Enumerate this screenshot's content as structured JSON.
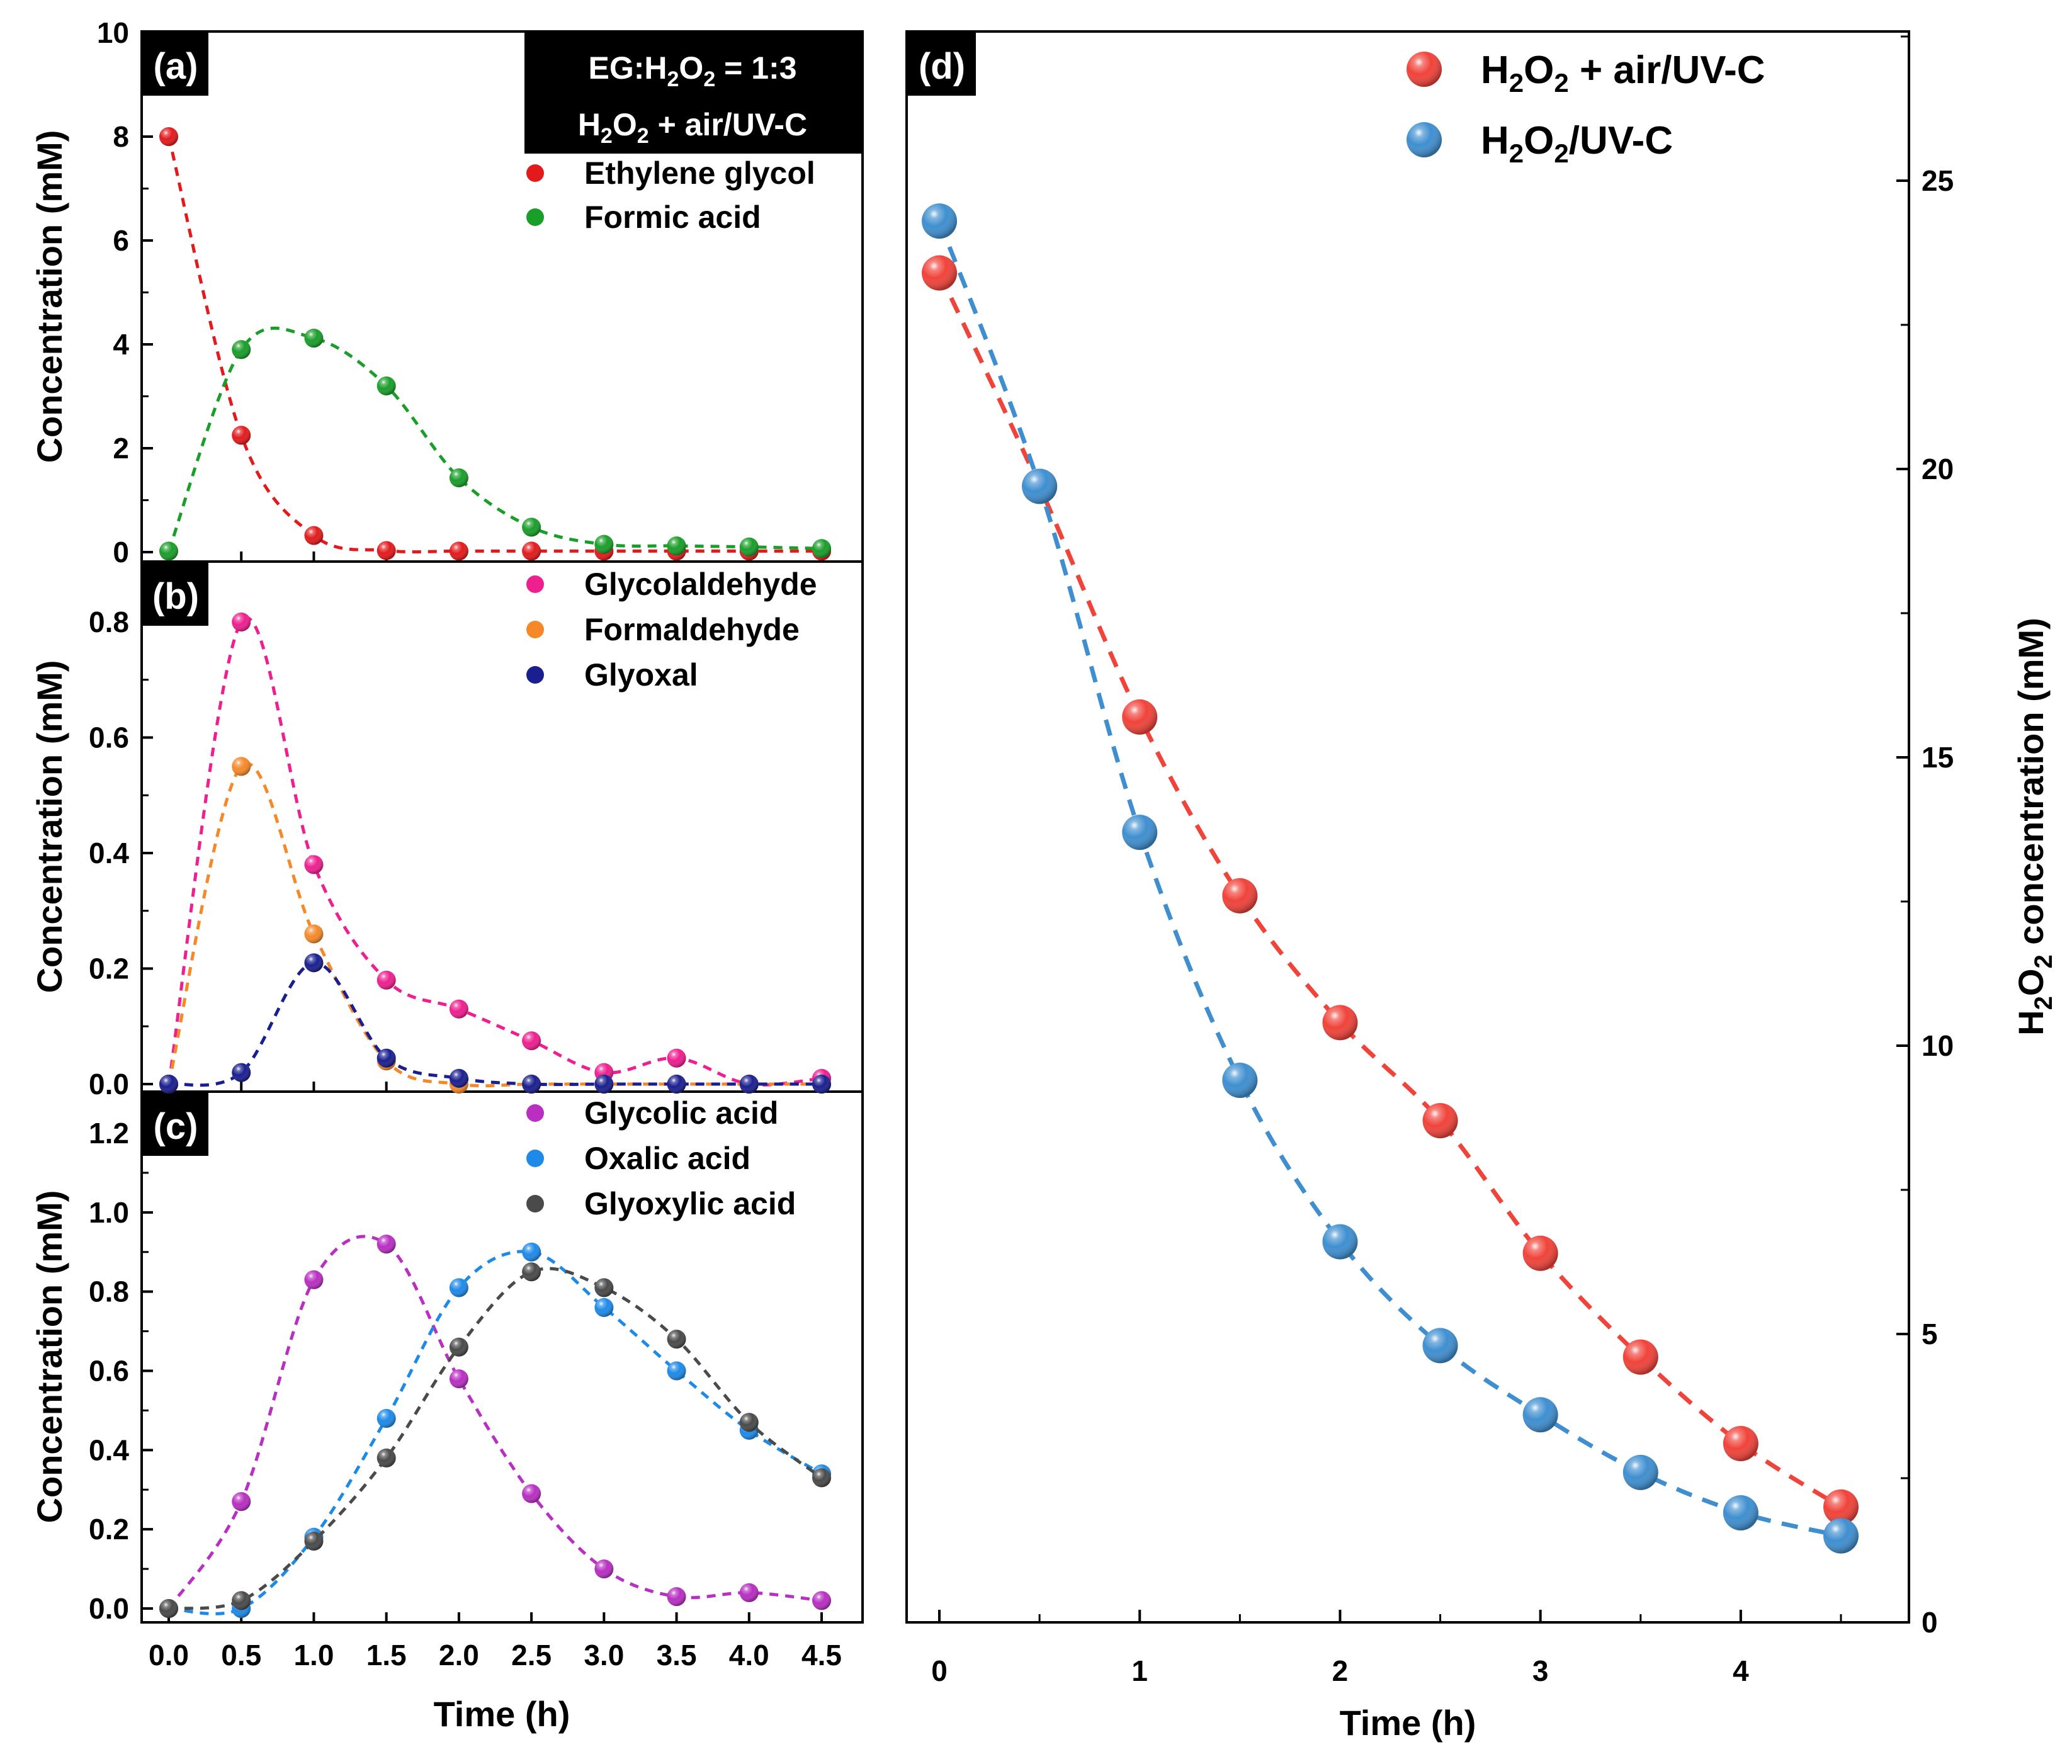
{
  "colors": {
    "ethylene_glycol": "#e31a1c",
    "formic_acid": "#1a9e2a",
    "glycolaldehyde": "#ee1f8f",
    "formaldehyde": "#f5892a",
    "glyoxal": "#1a1f8f",
    "glycolic_acid": "#b82fc2",
    "oxalic_acid": "#1e8ae8",
    "glyoxylic_acid": "#4a4a4a",
    "h2o2_air": "#f0433a",
    "h2o2_uv": "#3f8fd0"
  },
  "chart_data": [
    {
      "panel": "a",
      "type": "scatter",
      "badge": "(a)",
      "condition_line1": "EG:H2O2 = 1:3",
      "condition_line2": "H2O2 + air/UV-C",
      "ylabel": "Concentration (mM)",
      "ylim": [
        0,
        10
      ],
      "yticks": [
        "0",
        "2",
        "4",
        "6",
        "8",
        "10"
      ],
      "x": [
        0,
        0.5,
        1.0,
        1.5,
        2.0,
        2.5,
        3.0,
        3.5,
        4.0,
        4.5
      ],
      "series": [
        {
          "name": "Ethylene glycol",
          "values": [
            8.0,
            2.25,
            0.32,
            0.03,
            0.02,
            0.02,
            0.02,
            0.02,
            0.02,
            0.02
          ]
        },
        {
          "name": "Formic acid",
          "values": [
            0.02,
            3.9,
            4.12,
            3.2,
            1.43,
            0.48,
            0.15,
            0.12,
            0.1,
            0.07
          ]
        }
      ]
    },
    {
      "panel": "b",
      "type": "scatter",
      "badge": "(b)",
      "ylabel": "Concentration (mM)",
      "ylim": [
        -0.02,
        0.9
      ],
      "yticks": [
        "0.0",
        "0.2",
        "0.4",
        "0.6",
        "0.8"
      ],
      "x": [
        0,
        0.5,
        1.0,
        1.5,
        2.0,
        2.5,
        3.0,
        3.5,
        4.0,
        4.5
      ],
      "series": [
        {
          "name": "Glycolaldehyde",
          "values": [
            0.0,
            0.8,
            0.38,
            0.18,
            0.13,
            0.075,
            0.02,
            0.045,
            0.0,
            0.01
          ]
        },
        {
          "name": "Formaldehyde",
          "values": [
            0.0,
            0.55,
            0.26,
            0.04,
            0.0,
            0.0,
            0.0,
            0.0,
            0.0,
            0.0
          ]
        },
        {
          "name": "Glyoxal",
          "values": [
            0.0,
            0.02,
            0.21,
            0.045,
            0.01,
            0.0,
            0.0,
            0.0,
            0.0,
            0.0
          ]
        }
      ]
    },
    {
      "panel": "c",
      "type": "scatter",
      "badge": "(c)",
      "ylabel": "Concentration (mM)",
      "xlabel": "Time (h)",
      "ylim": [
        -0.05,
        1.3
      ],
      "yticks": [
        "0.0",
        "0.2",
        "0.4",
        "0.6",
        "0.8",
        "1.0",
        "1.2"
      ],
      "xticks": [
        "0.0",
        "0.5",
        "1.0",
        "1.5",
        "2.0",
        "2.5",
        "3.0",
        "3.5",
        "4.0",
        "4.5"
      ],
      "x": [
        0,
        0.5,
        1.0,
        1.5,
        2.0,
        2.5,
        3.0,
        3.5,
        4.0,
        4.5
      ],
      "series": [
        {
          "name": "Glycolic acid",
          "values": [
            0.0,
            0.27,
            0.83,
            0.92,
            0.58,
            0.29,
            0.1,
            0.03,
            0.04,
            0.02
          ]
        },
        {
          "name": "Oxalic acid",
          "values": [
            0.0,
            0.0,
            0.18,
            0.48,
            0.81,
            0.9,
            0.76,
            0.6,
            0.45,
            0.34
          ]
        },
        {
          "name": "Glyoxylic acid",
          "values": [
            0.0,
            0.02,
            0.17,
            0.38,
            0.66,
            0.85,
            0.81,
            0.68,
            0.47,
            0.33
          ]
        }
      ]
    },
    {
      "panel": "d",
      "type": "scatter",
      "badge": "(d)",
      "ylabel": "H2O2 concentration (mM)",
      "xlabel": "Time (h)",
      "xlim": [
        -0.15,
        4.85
      ],
      "ylim": [
        0,
        27.5
      ],
      "xticks": [
        "0",
        "1",
        "2",
        "3",
        "4"
      ],
      "yticks": [
        "0",
        "5",
        "10",
        "15",
        "20",
        "25"
      ],
      "x": [
        0,
        0.5,
        1.0,
        1.5,
        2.0,
        2.5,
        3.0,
        3.5,
        4.0,
        4.5
      ],
      "series": [
        {
          "name": "H2O2 + air/UV-C",
          "values": [
            23.4,
            19.7,
            15.7,
            12.6,
            10.4,
            8.7,
            6.4,
            4.6,
            3.1,
            2.0
          ]
        },
        {
          "name": "H2O2/UV-C",
          "values": [
            24.3,
            19.7,
            13.7,
            9.4,
            6.6,
            4.8,
            3.6,
            2.6,
            1.9,
            1.5
          ]
        }
      ]
    }
  ]
}
